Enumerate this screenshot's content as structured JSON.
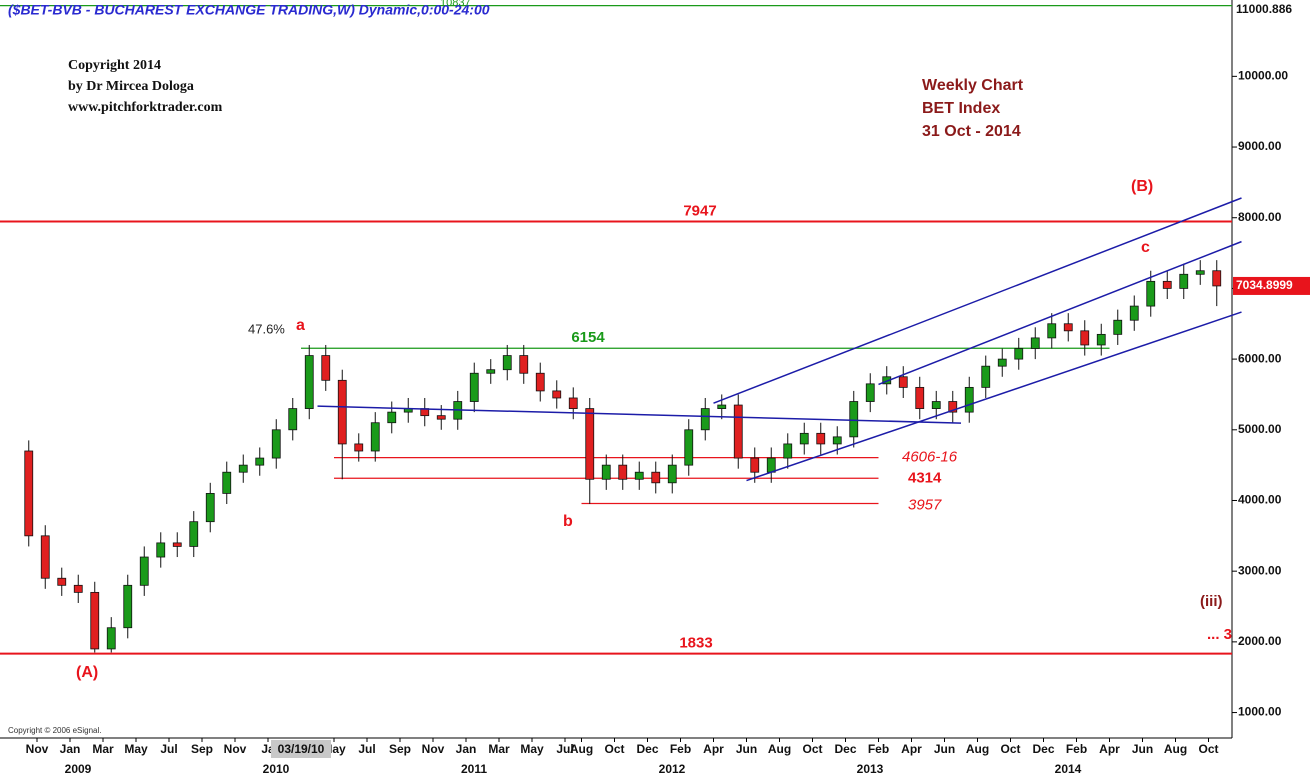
{
  "chart_data": {
    "type": "candlestick",
    "title": "($BET-BVB - BUCHAREST EXCHANGE TRADING,W) Dynamic,0:00-24:00",
    "top_value_note": "10837",
    "copyright": [
      "Copyright 2014",
      "by Dr Mircea Dologa",
      "www.pitchforktrader.com"
    ],
    "info": [
      "Weekly Chart",
      "BET Index",
      "31 Oct - 2014"
    ],
    "footer": "Copyright © 2006 eSignal.",
    "up_color": "#1a9a1a",
    "down_color": "#e02020",
    "x": [
      "2008-10",
      "2008-11",
      "2008-12",
      "2009-01",
      "2009-02",
      "2009-03",
      "2009-04",
      "2009-05",
      "2009-06",
      "2009-07",
      "2009-08",
      "2009-09",
      "2009-10",
      "2009-11",
      "2009-12",
      "2010-01",
      "2010-02",
      "2010-03",
      "2010-04",
      "2010-05",
      "2010-06",
      "2010-07",
      "2010-08",
      "2010-09",
      "2010-10",
      "2010-11",
      "2010-12",
      "2011-01",
      "2011-02",
      "2011-03",
      "2011-04",
      "2011-05",
      "2011-06",
      "2011-07",
      "2011-08",
      "2011-09",
      "2011-10",
      "2011-11",
      "2011-12",
      "2012-01",
      "2012-02",
      "2012-03",
      "2012-04",
      "2012-05",
      "2012-06",
      "2012-07",
      "2012-08",
      "2012-09",
      "2012-10",
      "2012-11",
      "2012-12",
      "2013-01",
      "2013-02",
      "2013-03",
      "2013-04",
      "2013-05",
      "2013-06",
      "2013-07",
      "2013-08",
      "2013-09",
      "2013-10",
      "2013-11",
      "2013-12",
      "2014-01",
      "2014-02",
      "2014-03",
      "2014-04",
      "2014-05",
      "2014-06",
      "2014-07",
      "2014-08",
      "2014-09",
      "2014-10"
    ],
    "open": [
      4700,
      3500,
      2900,
      2800,
      2700,
      1900,
      2200,
      2800,
      3200,
      3400,
      3350,
      3700,
      4100,
      4400,
      4500,
      4600,
      5000,
      5300,
      6050,
      5700,
      4800,
      4700,
      5100,
      5250,
      5300,
      5200,
      5150,
      5400,
      5800,
      5850,
      6050,
      5800,
      5550,
      5450,
      5300,
      4300,
      4500,
      4300,
      4400,
      4250,
      4500,
      5000,
      5300,
      5350,
      4600,
      4400,
      4600,
      4800,
      4950,
      4800,
      4900,
      5400,
      5650,
      5750,
      5600,
      5300,
      5400,
      5250,
      5600,
      5900,
      6000,
      6150,
      6300,
      6500,
      6400,
      6200,
      6350,
      6550,
      6750,
      7100,
      7000,
      7200,
      7250
    ],
    "high": [
      4850,
      3650,
      3050,
      2950,
      2850,
      2350,
      2950,
      3350,
      3550,
      3550,
      3850,
      4250,
      4550,
      4650,
      4750,
      5150,
      5450,
      6200,
      6200,
      5850,
      4950,
      5250,
      5400,
      5450,
      5450,
      5350,
      5550,
      5950,
      6000,
      6200,
      6200,
      5950,
      5700,
      5600,
      5450,
      4650,
      4650,
      4550,
      4550,
      4650,
      5150,
      5450,
      5500,
      5500,
      4750,
      4750,
      4950,
      5100,
      5100,
      5050,
      5550,
      5800,
      5900,
      5900,
      5750,
      5550,
      5550,
      5750,
      6050,
      6150,
      6300,
      6450,
      6650,
      6650,
      6550,
      6500,
      6700,
      6900,
      7250,
      7250,
      7350,
      7400,
      7400
    ],
    "low": [
      3350,
      2750,
      2650,
      2550,
      1850,
      1850,
      2050,
      2650,
      3050,
      3200,
      3200,
      3550,
      3950,
      4250,
      4350,
      4450,
      4850,
      5150,
      5550,
      4300,
      4550,
      4550,
      4950,
      5100,
      5050,
      5000,
      5000,
      5250,
      5650,
      5700,
      5650,
      5400,
      5300,
      5150,
      3950,
      4150,
      4150,
      4150,
      4100,
      4100,
      4350,
      4850,
      5150,
      4450,
      4250,
      4250,
      4450,
      4650,
      4650,
      4650,
      4750,
      5250,
      5500,
      5450,
      5150,
      5150,
      5100,
      5100,
      5450,
      5750,
      5850,
      6000,
      6150,
      6250,
      6050,
      6050,
      6200,
      6400,
      6600,
      6850,
      6850,
      7050,
      6750
    ],
    "close": [
      3500,
      2900,
      2800,
      2700,
      1900,
      2200,
      2800,
      3200,
      3400,
      3350,
      3700,
      4100,
      4400,
      4500,
      4600,
      5000,
      5300,
      6050,
      5700,
      4800,
      4700,
      5100,
      5250,
      5300,
      5200,
      5150,
      5400,
      5800,
      5850,
      6050,
      5800,
      5550,
      5450,
      5300,
      4300,
      4500,
      4300,
      4400,
      4250,
      4500,
      5000,
      5300,
      5350,
      4600,
      4400,
      4600,
      4800,
      4950,
      4800,
      4900,
      5400,
      5650,
      5750,
      5600,
      5300,
      5400,
      5250,
      5600,
      5900,
      6000,
      6150,
      6300,
      6500,
      6400,
      6200,
      6350,
      6550,
      6750,
      7100,
      7000,
      7200,
      7250,
      7035
    ],
    "ylim": [
      640,
      11080
    ],
    "yticks": [
      {
        "value": 1000,
        "label": "1000.00"
      },
      {
        "value": 2000,
        "label": "2000.00"
      },
      {
        "value": 3000,
        "label": "3000.00"
      },
      {
        "value": 4000,
        "label": "4000.00"
      },
      {
        "value": 5000,
        "label": "5000.00"
      },
      {
        "value": 6000,
        "label": "6000.00"
      },
      {
        "value": 7000,
        "label": "7000.00"
      },
      {
        "value": 8000,
        "label": "8000.00"
      },
      {
        "value": 9000,
        "label": "9000.00"
      },
      {
        "value": 10000,
        "label": "10000.00"
      }
    ],
    "xticks": [
      {
        "value": "2008-11",
        "label": "Nov"
      },
      {
        "value": "2009-01",
        "label": "Jan"
      },
      {
        "value": "2009-03",
        "label": "Mar"
      },
      {
        "value": "2009-05",
        "label": "May"
      },
      {
        "value": "2009-07",
        "label": "Jul"
      },
      {
        "value": "2009-09",
        "label": "Sep"
      },
      {
        "value": "2009-11",
        "label": "Nov"
      },
      {
        "value": "2010-01",
        "label": "Ja"
      },
      {
        "value": "2010-05",
        "label": "May"
      },
      {
        "value": "2010-07",
        "label": "Jul"
      },
      {
        "value": "2010-09",
        "label": "Sep"
      },
      {
        "value": "2010-11",
        "label": "Nov"
      },
      {
        "value": "2011-01",
        "label": "Jan"
      },
      {
        "value": "2011-03",
        "label": "Mar"
      },
      {
        "value": "2011-05",
        "label": "May"
      },
      {
        "value": "2011-07",
        "label": "Jul"
      },
      {
        "value": "2011-08",
        "label": "Aug"
      },
      {
        "value": "2011-10",
        "label": "Oct"
      },
      {
        "value": "2011-12",
        "label": "Dec"
      },
      {
        "value": "2012-02",
        "label": "Feb"
      },
      {
        "value": "2012-04",
        "label": "Apr"
      },
      {
        "value": "2012-06",
        "label": "Jun"
      },
      {
        "value": "2012-08",
        "label": "Aug"
      },
      {
        "value": "2012-10",
        "label": "Oct"
      },
      {
        "value": "2012-12",
        "label": "Dec"
      },
      {
        "value": "2013-02",
        "label": "Feb"
      },
      {
        "value": "2013-04",
        "label": "Apr"
      },
      {
        "value": "2013-06",
        "label": "Jun"
      },
      {
        "value": "2013-08",
        "label": "Aug"
      },
      {
        "value": "2013-10",
        "label": "Oct"
      },
      {
        "value": "2013-12",
        "label": "Dec"
      },
      {
        "value": "2014-02",
        "label": "Feb"
      },
      {
        "value": "2014-04",
        "label": "Apr"
      },
      {
        "value": "2014-06",
        "label": "Jun"
      },
      {
        "value": "2014-08",
        "label": "Aug"
      },
      {
        "value": "2014-10",
        "label": "Oct"
      }
    ],
    "cursor_date": {
      "value": "2010-03",
      "label": "03/19/10"
    },
    "year_labels": [
      {
        "value": "2009-01",
        "label": "2009"
      },
      {
        "value": "2010-01",
        "label": "2010"
      },
      {
        "value": "2011-01",
        "label": "2011"
      },
      {
        "value": "2012-01",
        "label": "2012"
      },
      {
        "value": "2013-01",
        "label": "2013"
      },
      {
        "value": "2014-01",
        "label": "2014"
      }
    ],
    "levels": [
      {
        "value": 7947,
        "label": "7947",
        "color": "#e8141c"
      },
      {
        "value": 1833,
        "label": "1833",
        "color": "#e8141c"
      },
      {
        "value": 6154,
        "label": "6154",
        "color": "#1a9a1a",
        "from": "2010-03",
        "to": "2014-04"
      },
      {
        "value": 4606,
        "label": "4606-16",
        "color": "#e8141c",
        "from": "2010-05",
        "to": "2013-02"
      },
      {
        "value": 4314,
        "label": "4314",
        "color": "#e8141c",
        "from": "2010-05",
        "to": "2013-02"
      },
      {
        "value": 3957,
        "label": "3957",
        "color": "#e8141c",
        "from": "2011-08",
        "to": "2013-02"
      }
    ],
    "trendlines": [
      {
        "start": "2012-04",
        "start_value": 5376,
        "end": "2014-12",
        "end_value": 8279,
        "color": "#1c1ca8"
      },
      {
        "start": "2013-02",
        "start_value": 5642,
        "end": "2014-12",
        "end_value": 7662,
        "color": "#1c1ca8"
      },
      {
        "start": "2012-06",
        "start_value": 4282,
        "end": "2014-12",
        "end_value": 6666,
        "color": "#1c1ca8"
      },
      {
        "start": "2010-04",
        "start_value": 5334,
        "end": "2013-07",
        "end_value": 5095,
        "color": "#1c1ca8"
      }
    ],
    "markers": [
      {
        "value": 11000.886,
        "label": "11000.886",
        "color": "#1a9a1a"
      },
      {
        "value": 7034.8999,
        "label": "7034.8999",
        "color": "#e8141c"
      }
    ],
    "annotations": [
      {
        "text": "47.6%",
        "color": "#222222"
      },
      {
        "text": "a",
        "color": "#e8141c"
      },
      {
        "text": "b",
        "color": "#e8141c"
      },
      {
        "text": "(A)",
        "color": "#e8141c"
      },
      {
        "text": "(B)",
        "color": "#e8141c"
      },
      {
        "text": "c",
        "color": "#e8141c"
      },
      {
        "text": "(iii)",
        "color": "#8b1a1a"
      },
      {
        "text": "... 3",
        "color": "#e8141c"
      }
    ]
  }
}
